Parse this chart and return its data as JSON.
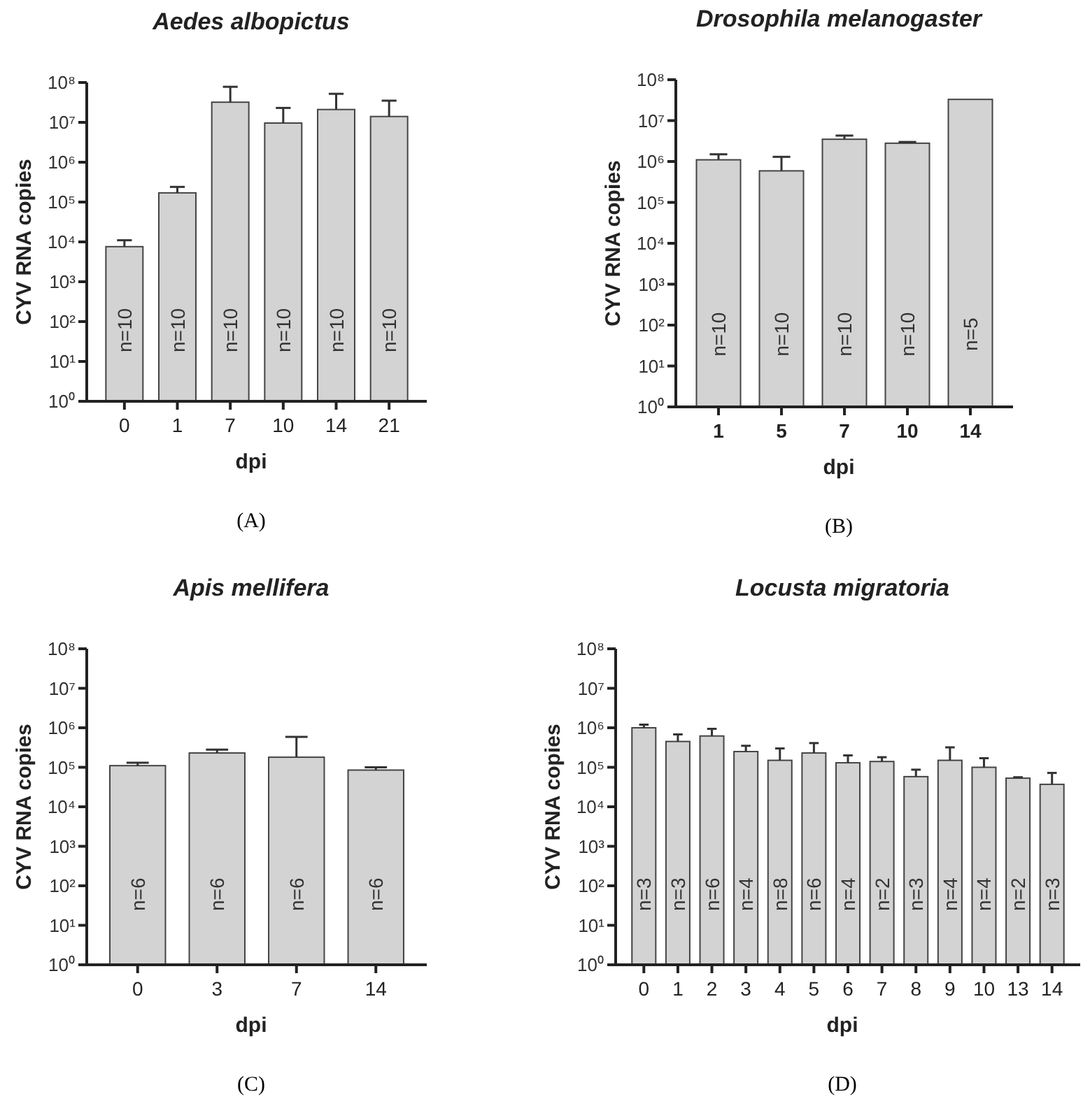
{
  "chart_data": [
    {
      "type": "bar",
      "title": "Aedes albopictus",
      "xlabel": "dpi",
      "ylabel": "CYV RNA copies",
      "log": true,
      "color": "#d3d3d3",
      "ylim": [
        1,
        100000000
      ],
      "yticks": [
        {
          "value": 1,
          "label": "10⁰"
        },
        {
          "value": 10,
          "label": "10¹"
        },
        {
          "value": 100,
          "label": "10²"
        },
        {
          "value": 1000,
          "label": "10³"
        },
        {
          "value": 10000,
          "label": "10⁴"
        },
        {
          "value": 100000,
          "label": "10⁵"
        },
        {
          "value": 1000000,
          "label": "10⁶"
        },
        {
          "value": 10000000,
          "label": "10⁷"
        },
        {
          "value": 100000000,
          "label": "10⁸"
        }
      ],
      "categories": [
        "0",
        "1",
        "7",
        "10",
        "14",
        "21"
      ],
      "values": [
        7600,
        170000,
        32000000,
        9600000,
        21000000,
        14000000
      ],
      "errors": [
        [
          7600,
          11000
        ],
        [
          170000,
          240000
        ],
        [
          32000000,
          78000000
        ],
        [
          9600000,
          23000000
        ],
        [
          21000000,
          52000000
        ],
        [
          14000000,
          35000000
        ]
      ],
      "annotations": [
        "n=10",
        "n=10",
        "n=10",
        "n=10",
        "n=10",
        "n=10",
        "(A)"
      ]
    },
    {
      "type": "bar",
      "title": "Drosophila melanogaster",
      "xlabel": "dpi",
      "ylabel": "CYV RNA copies",
      "log": true,
      "color": "#d3d3d3",
      "ylim": [
        1,
        100000000
      ],
      "yticks": [
        {
          "value": 1,
          "label": "10⁰"
        },
        {
          "value": 10,
          "label": "10¹"
        },
        {
          "value": 100,
          "label": "10²"
        },
        {
          "value": 1000,
          "label": "10³"
        },
        {
          "value": 10000,
          "label": "10⁴"
        },
        {
          "value": 100000,
          "label": "10⁵"
        },
        {
          "value": 1000000,
          "label": "10⁶"
        },
        {
          "value": 10000000,
          "label": "10⁷"
        },
        {
          "value": 100000000,
          "label": "10⁸"
        }
      ],
      "categories": [
        "1",
        "5",
        "7",
        "10",
        "14"
      ],
      "values": [
        1100000,
        590000,
        3500000,
        2800000,
        33000000
      ],
      "errors": [
        [
          1100000,
          1500000
        ],
        [
          590000,
          1300000
        ],
        [
          3500000,
          4300000
        ],
        [
          2800000,
          3000000
        ],
        null
      ],
      "annotations": [
        "n=10",
        "n=10",
        "n=10",
        "n=10",
        "n=5",
        "(B)"
      ]
    },
    {
      "type": "bar",
      "title": "Apis mellifera",
      "xlabel": "dpi",
      "ylabel": "CYV RNA copies",
      "log": true,
      "color": "#d3d3d3",
      "ylim": [
        1,
        100000000
      ],
      "yticks": [
        {
          "value": 1,
          "label": "10⁰"
        },
        {
          "value": 10,
          "label": "10¹"
        },
        {
          "value": 100,
          "label": "10²"
        },
        {
          "value": 1000,
          "label": "10³"
        },
        {
          "value": 10000,
          "label": "10⁴"
        },
        {
          "value": 100000,
          "label": "10⁵"
        },
        {
          "value": 1000000,
          "label": "10⁶"
        },
        {
          "value": 10000000,
          "label": "10⁷"
        },
        {
          "value": 100000000,
          "label": "10⁸"
        }
      ],
      "categories": [
        "0",
        "3",
        "7",
        "14"
      ],
      "values": [
        110000,
        230000,
        180000,
        85000
      ],
      "errors": [
        [
          110000,
          130000
        ],
        [
          230000,
          280000
        ],
        [
          180000,
          590000
        ],
        [
          85000,
          100000
        ]
      ],
      "annotations": [
        "n=6",
        "n=6",
        "n=6",
        "n=6",
        "(C)"
      ]
    },
    {
      "type": "bar",
      "title": "Locusta migratoria",
      "xlabel": "dpi",
      "ylabel": "CYV RNA copies",
      "log": true,
      "color": "#d3d3d3",
      "ylim": [
        1,
        100000000
      ],
      "yticks": [
        {
          "value": 1,
          "label": "10⁰"
        },
        {
          "value": 10,
          "label": "10¹"
        },
        {
          "value": 100,
          "label": "10²"
        },
        {
          "value": 1000,
          "label": "10³"
        },
        {
          "value": 10000,
          "label": "10⁴"
        },
        {
          "value": 100000,
          "label": "10⁵"
        },
        {
          "value": 1000000,
          "label": "10⁶"
        },
        {
          "value": 10000000,
          "label": "10⁷"
        },
        {
          "value": 100000000,
          "label": "10⁸"
        }
      ],
      "categories": [
        "0",
        "1",
        "2",
        "3",
        "4",
        "5",
        "6",
        "7",
        "8",
        "9",
        "10",
        "13",
        "14"
      ],
      "values": [
        1000000,
        450000,
        620000,
        250000,
        150000,
        230000,
        130000,
        140000,
        58000,
        150000,
        100000,
        53000,
        37000
      ],
      "errors": [
        [
          1000000,
          1200000
        ],
        [
          450000,
          680000
        ],
        [
          620000,
          940000
        ],
        [
          250000,
          350000
        ],
        [
          150000,
          300000
        ],
        [
          230000,
          410000
        ],
        [
          130000,
          200000
        ],
        [
          140000,
          180000
        ],
        [
          58000,
          87000
        ],
        [
          150000,
          320000
        ],
        [
          100000,
          170000
        ],
        [
          53000,
          56000
        ],
        [
          37000,
          72000
        ]
      ],
      "annotations": [
        "n=3",
        "n=3",
        "n=6",
        "n=4",
        "n=8",
        "n=6",
        "n=4",
        "n=2",
        "n=3",
        "n=4",
        "n=4",
        "n=2",
        "n=3",
        "(D)"
      ]
    }
  ]
}
